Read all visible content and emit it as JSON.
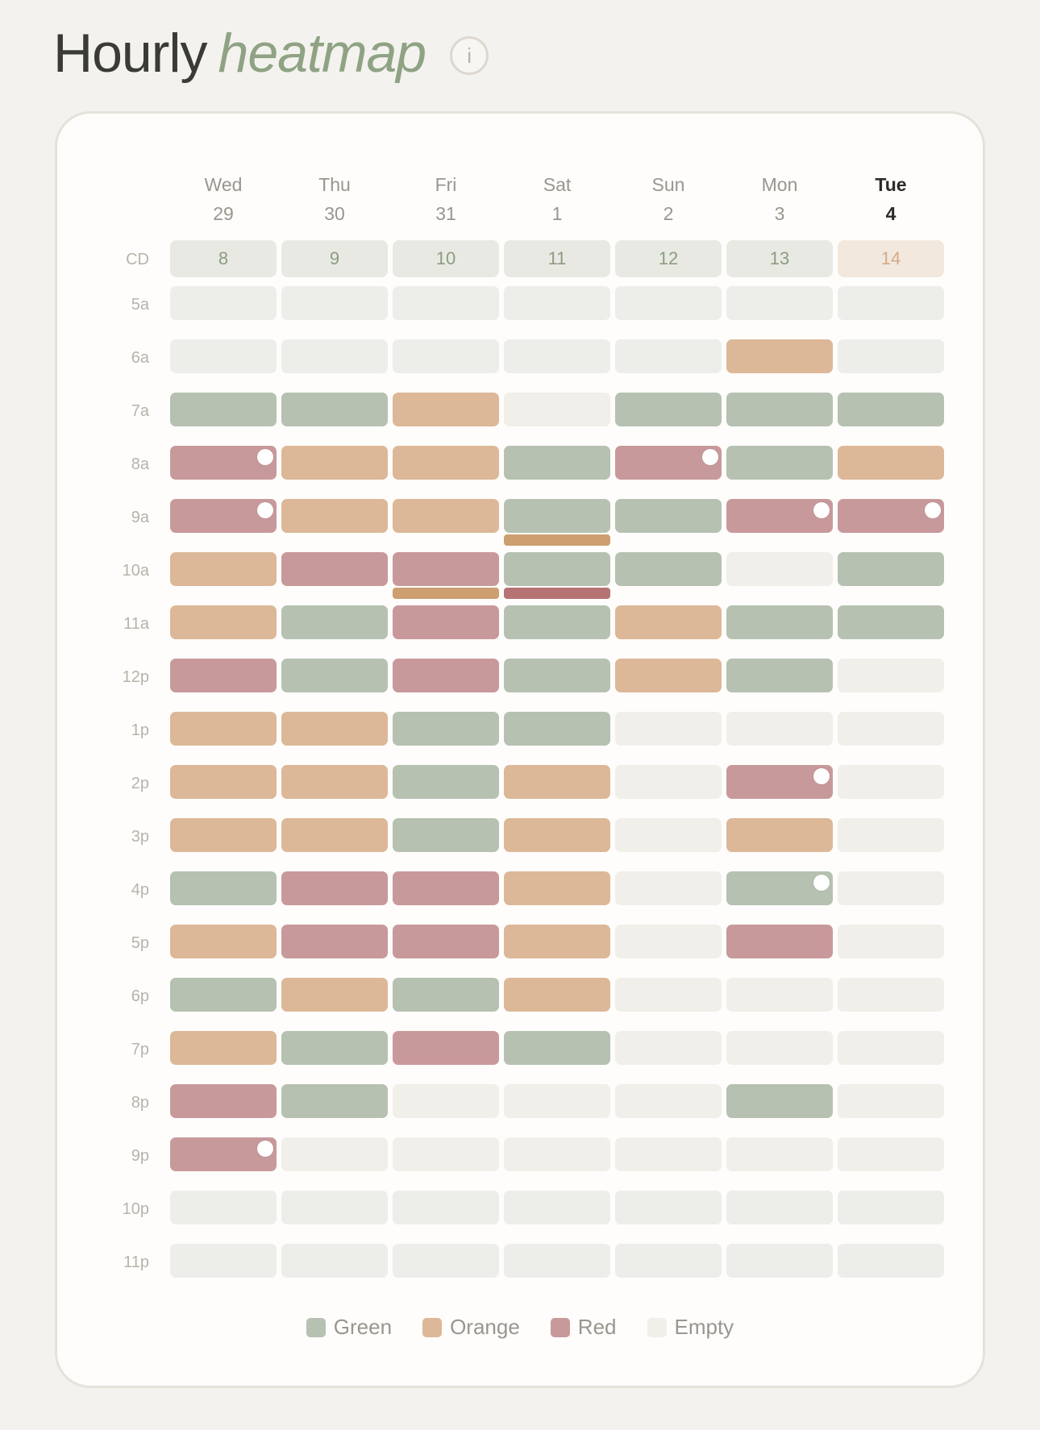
{
  "header": {
    "title_main": "Hourly",
    "title_accent": "heatmap",
    "info_label": "i"
  },
  "columns": [
    {
      "day": "Wed",
      "date": "29",
      "cd": "8",
      "current": false
    },
    {
      "day": "Thu",
      "date": "30",
      "cd": "9",
      "current": false
    },
    {
      "day": "Fri",
      "date": "31",
      "cd": "10",
      "current": false
    },
    {
      "day": "Sat",
      "date": "1",
      "cd": "11",
      "current": false
    },
    {
      "day": "Sun",
      "date": "2",
      "cd": "12",
      "current": false
    },
    {
      "day": "Mon",
      "date": "3",
      "cd": "13",
      "current": false
    },
    {
      "day": "Tue",
      "date": "4",
      "cd": "14",
      "current": true
    }
  ],
  "cd_label": "CD",
  "hours": [
    "5a",
    "6a",
    "7a",
    "8a",
    "9a",
    "10a",
    "11a",
    "12p",
    "1p",
    "2p",
    "3p",
    "4p",
    "5p",
    "6p",
    "7p",
    "8p",
    "9p",
    "10p",
    "11p"
  ],
  "grid": [
    [
      "B",
      "B",
      "B",
      "B",
      "B",
      "B",
      "B"
    ],
    [
      "B",
      "B",
      "B",
      "B",
      "B",
      "O",
      "B"
    ],
    [
      "G",
      "G",
      "O",
      "E",
      "G",
      "G",
      "G"
    ],
    [
      "R",
      "O",
      "O",
      "G",
      "R",
      "G",
      "O"
    ],
    [
      "R",
      "O",
      "O",
      "G",
      "G",
      "R",
      "R"
    ],
    [
      "O",
      "R",
      "R",
      "G",
      "G",
      "E",
      "G"
    ],
    [
      "O",
      "G",
      "R",
      "G",
      "O",
      "G",
      "G"
    ],
    [
      "R",
      "G",
      "R",
      "G",
      "O",
      "G",
      "E"
    ],
    [
      "O",
      "O",
      "G",
      "G",
      "E",
      "E",
      "E"
    ],
    [
      "O",
      "O",
      "G",
      "O",
      "E",
      "R",
      "E"
    ],
    [
      "O",
      "O",
      "G",
      "O",
      "E",
      "O",
      "E"
    ],
    [
      "G",
      "R",
      "R",
      "O",
      "E",
      "G",
      "E"
    ],
    [
      "O",
      "R",
      "R",
      "O",
      "E",
      "R",
      "E"
    ],
    [
      "G",
      "O",
      "G",
      "O",
      "E",
      "E",
      "E"
    ],
    [
      "O",
      "G",
      "R",
      "G",
      "E",
      "E",
      "E"
    ],
    [
      "R",
      "G",
      "E",
      "E",
      "E",
      "G",
      "E"
    ],
    [
      "R",
      "E",
      "E",
      "E",
      "E",
      "E",
      "E"
    ],
    [
      "B",
      "B",
      "B",
      "B",
      "B",
      "B",
      "B"
    ],
    [
      "B",
      "B",
      "B",
      "B",
      "B",
      "B",
      "B"
    ]
  ],
  "markers": [
    {
      "row": 3,
      "col": 0
    },
    {
      "row": 3,
      "col": 4
    },
    {
      "row": 4,
      "col": 0
    },
    {
      "row": 4,
      "col": 5
    },
    {
      "row": 4,
      "col": 6
    },
    {
      "row": 9,
      "col": 5
    },
    {
      "row": 11,
      "col": 5
    },
    {
      "row": 16,
      "col": 0
    }
  ],
  "sub_bars": [
    {
      "after_row": 4,
      "col": 3,
      "color": "orange"
    },
    {
      "after_row": 5,
      "col": 2,
      "color": "orange"
    },
    {
      "after_row": 5,
      "col": 3,
      "color": "red"
    }
  ],
  "legend": [
    {
      "label": "Green",
      "color": "#b6c1b1"
    },
    {
      "label": "Orange",
      "color": "#dcb898"
    },
    {
      "label": "Red",
      "color": "#c8999b"
    },
    {
      "label": "Empty",
      "color": "#f1efea"
    }
  ]
}
